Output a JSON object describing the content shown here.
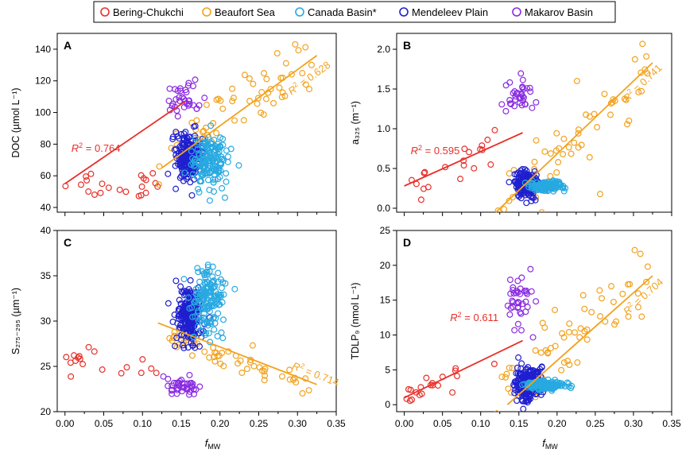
{
  "legend": [
    {
      "key": "bc",
      "label": "Bering-Chukchi",
      "color": "#e8302a"
    },
    {
      "key": "bs",
      "label": "Beaufort Sea",
      "color": "#f2a21e"
    },
    {
      "key": "cb",
      "label": "Canada Basin*",
      "color": "#27a9e1"
    },
    {
      "key": "mp",
      "label": "Mendeleev Plain",
      "color": "#1f1fcf"
    },
    {
      "key": "mb",
      "label": "Makarov Basin",
      "color": "#8a2be2"
    }
  ],
  "xaxis": {
    "label_main": "f",
    "label_sub": "MW",
    "range": [
      -0.01,
      0.35
    ],
    "ticks": [
      0.0,
      0.05,
      0.1,
      0.15,
      0.2,
      0.25,
      0.3,
      0.35
    ],
    "tick_labels": [
      "0.00",
      "0.05",
      "0.10",
      "0.15",
      "0.20",
      "0.25",
      "0.30",
      "0.35"
    ]
  },
  "chart_data": [
    {
      "panel": "A",
      "type": "scatter",
      "ylabel": "DOC (µmol L⁻¹)",
      "ylim": [
        37,
        150
      ],
      "yticks": [
        40,
        60,
        80,
        100,
        120,
        140
      ],
      "groups": {
        "bc": {
          "xr": [
            0.0,
            0.12
          ],
          "n": 22,
          "line": [
            55,
            1.6
          ],
          "scatter": 5
        },
        "bs": {
          "xr": [
            0.12,
            0.32
          ],
          "n": 60,
          "line": [
            28,
            340
          ],
          "scatter": 9
        },
        "cb": {
          "cx": 0.185,
          "cy": 70,
          "sx": 0.012,
          "sy": 9,
          "n": 160
        },
        "mp": {
          "cx": 0.16,
          "cy": 72,
          "sx": 0.008,
          "sy": 7,
          "n": 220
        },
        "mb": {
          "cx": 0.15,
          "cy": 108,
          "sx": 0.012,
          "sy": 6,
          "n": 35
        }
      },
      "fits": [
        {
          "key": "bc",
          "x": [
            0.0,
            0.155
          ],
          "y": [
            55,
            107
          ],
          "r2": "0.764"
        },
        {
          "key": "bs",
          "x": [
            0.125,
            0.325
          ],
          "y": [
            65,
            136
          ],
          "r2": "0.628"
        }
      ]
    },
    {
      "panel": "B",
      "type": "scatter",
      "ylabel": "a₃₂₅ (m⁻¹)",
      "ylim": [
        -0.05,
        2.2
      ],
      "yticks": [
        0.0,
        0.5,
        1.0,
        1.5,
        2.0
      ],
      "ytick_labels": [
        "0.0",
        "0.5",
        "1.0",
        "1.5",
        "2.0"
      ],
      "groups": {
        "bc": {
          "xr": [
            0.0,
            0.12
          ],
          "n": 20,
          "line": [
            0.28,
            4.3
          ],
          "scatter": 0.12
        },
        "bs": {
          "xr": [
            0.12,
            0.32
          ],
          "n": 60,
          "line": [
            -1.2,
            9.3
          ],
          "scatter": 0.25
        },
        "cb": {
          "cx": 0.185,
          "cy": 0.28,
          "sx": 0.012,
          "sy": 0.03,
          "n": 140
        },
        "mp": {
          "cx": 0.16,
          "cy": 0.3,
          "sx": 0.008,
          "sy": 0.08,
          "n": 200
        },
        "mb": {
          "cx": 0.15,
          "cy": 1.38,
          "sx": 0.01,
          "sy": 0.1,
          "n": 35
        }
      },
      "fits": [
        {
          "key": "bc",
          "x": [
            0.0,
            0.155
          ],
          "y": [
            0.28,
            0.95
          ],
          "r2": "0.595"
        },
        {
          "key": "bs",
          "x": [
            0.12,
            0.325
          ],
          "y": [
            -0.05,
            1.83
          ],
          "r2": "0.741"
        }
      ]
    },
    {
      "panel": "C",
      "type": "scatter",
      "ylabel": "S₂₇₅₋₂₉₅ (µm⁻¹)",
      "ylim": [
        20,
        40
      ],
      "yticks": [
        20,
        25,
        30,
        35,
        40
      ],
      "groups": {
        "bc": {
          "xr": [
            0.0,
            0.12
          ],
          "n": 18,
          "line": [
            25.5,
            5
          ],
          "scatter": 1.3
        },
        "bs": {
          "xr": [
            0.12,
            0.32
          ],
          "n": 55,
          "line": [
            31.5,
            -26
          ],
          "scatter": 0.6
        },
        "cb": {
          "cx": 0.185,
          "cy": 32.5,
          "sx": 0.01,
          "sy": 1.8,
          "n": 150
        },
        "mp": {
          "cx": 0.16,
          "cy": 30.5,
          "sx": 0.008,
          "sy": 1.6,
          "n": 220
        },
        "mb": {
          "cx": 0.15,
          "cy": 22.8,
          "sx": 0.01,
          "sy": 0.5,
          "n": 40
        }
      },
      "fits": [
        {
          "key": "bs",
          "x": [
            0.12,
            0.325
          ],
          "y": [
            29.8,
            23.0
          ],
          "r2": "0.714"
        }
      ]
    },
    {
      "panel": "D",
      "type": "scatter",
      "ylabel": "TDLP₉ (nmol L⁻¹)",
      "ylim": [
        -1,
        25
      ],
      "yticks": [
        0,
        5,
        10,
        15,
        20,
        25
      ],
      "groups": {
        "bc": {
          "xr": [
            0.0,
            0.12
          ],
          "n": 20,
          "line": [
            1.0,
            45
          ],
          "scatter": 1.0
        },
        "bs": {
          "xr": [
            0.12,
            0.32
          ],
          "n": 60,
          "line": [
            -10,
            90
          ],
          "scatter": 3
        },
        "cb": {
          "cx": 0.185,
          "cy": 2.8,
          "sx": 0.012,
          "sy": 0.3,
          "n": 140
        },
        "mp": {
          "cx": 0.16,
          "cy": 3.0,
          "sx": 0.008,
          "sy": 1.2,
          "n": 200
        },
        "mb": {
          "cx": 0.15,
          "cy": 14.5,
          "sx": 0.01,
          "sy": 2.2,
          "n": 40
        }
      },
      "fits": [
        {
          "key": "bc",
          "x": [
            0.0,
            0.155
          ],
          "y": [
            1.0,
            9.2
          ],
          "r2": "0.611"
        },
        {
          "key": "bs",
          "x": [
            0.135,
            0.325
          ],
          "y": [
            0.0,
            18.5
          ],
          "r2": "0.704"
        }
      ]
    }
  ]
}
